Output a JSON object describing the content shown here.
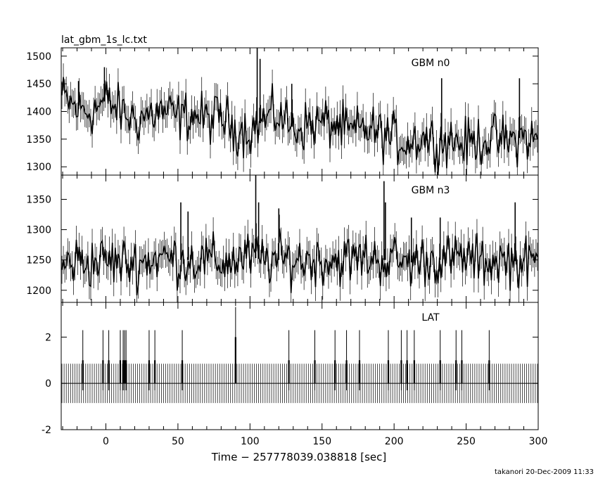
{
  "title": "lat_gbm_1s_lc.txt",
  "footer": "takanori 20-Dec-2009 11:33",
  "chart_data": {
    "type": "line",
    "xlabel": "Time − 257778039.038818 [sec]",
    "xlim": [
      -31,
      300
    ],
    "xticks": [
      0,
      50,
      100,
      150,
      200,
      250,
      300
    ],
    "grid": false,
    "panels": [
      {
        "label": "GBM n0",
        "ylim": [
          1285,
          1515
        ],
        "yticks": [
          1300,
          1350,
          1400,
          1450,
          1500
        ],
        "series": [
          {
            "x": [
              -30,
              -20,
              -10,
              0,
              10,
              20,
              30,
              40,
              50,
              60,
              70,
              80,
              90,
              100,
              110,
              120,
              130,
              140,
              150,
              160,
              170,
              180,
              190,
              200,
              210,
              220,
              230,
              240,
              250,
              260,
              270,
              280,
              290,
              300
            ],
            "y": [
              1425,
              1405,
              1400,
              1420,
              1400,
              1385,
              1395,
              1400,
              1390,
              1395,
              1385,
              1390,
              1370,
              1365,
              1385,
              1395,
              1370,
              1375,
              1380,
              1375,
              1360,
              1370,
              1360,
              1350,
              1345,
              1355,
              1345,
              1350,
              1340,
              1350,
              1350,
              1345,
              1355,
              1345
            ],
            "noise": 45,
            "spikes": [
              [
                -19,
                1455
              ],
              [
                -1,
                1480
              ],
              [
                105,
                1515
              ],
              [
                107,
                1495
              ],
              [
                129,
                1450
              ],
              [
                233,
                1460
              ],
              [
                287,
                1460
              ]
            ]
          }
        ]
      },
      {
        "label": "GBM n3",
        "ylim": [
          1180,
          1390
        ],
        "yticks": [
          1200,
          1250,
          1300,
          1350
        ],
        "series": [
          {
            "x": [
              -30,
              -20,
              -10,
              0,
              10,
              20,
              30,
              40,
              50,
              60,
              70,
              80,
              90,
              100,
              110,
              120,
              130,
              140,
              150,
              160,
              170,
              180,
              190,
              200,
              210,
              220,
              230,
              240,
              250,
              260,
              270,
              280,
              290,
              300
            ],
            "y": [
              1240,
              1250,
              1245,
              1250,
              1245,
              1245,
              1250,
              1255,
              1250,
              1250,
              1250,
              1245,
              1250,
              1255,
              1250,
              1250,
              1250,
              1250,
              1250,
              1250,
              1250,
              1255,
              1250,
              1250,
              1245,
              1250,
              1250,
              1250,
              1255,
              1245,
              1250,
              1250,
              1245,
              1245
            ],
            "noise": 42,
            "spikes": [
              [
                52,
                1345
              ],
              [
                57,
                1330
              ],
              [
                104,
                1390
              ],
              [
                106,
                1345
              ],
              [
                120,
                1335
              ],
              [
                193,
                1380
              ],
              [
                194,
                1345
              ],
              [
                212,
                1320
              ],
              [
                232,
                1320
              ],
              [
                284,
                1345
              ]
            ]
          }
        ]
      },
      {
        "label": "LAT",
        "ylim": [
          -2,
          3.5
        ],
        "yticks": [
          -2,
          0,
          2
        ],
        "series": [
          {
            "baseline": [
              0,
              0.85
            ],
            "x": [
              -16,
              -2,
              2,
              10,
              12,
              13,
              14,
              30,
              34,
              53,
              90,
              127,
              145,
              159,
              167,
              176,
              196,
              205,
              209,
              214,
              232,
              243,
              247,
              266
            ],
            "y": [
              1,
              1,
              1,
              1,
              1,
              1,
              1,
              1,
              1,
              1,
              2,
              1,
              1,
              1,
              1,
              1,
              1,
              1,
              1,
              1,
              1,
              1,
              1,
              1
            ]
          }
        ]
      }
    ]
  }
}
